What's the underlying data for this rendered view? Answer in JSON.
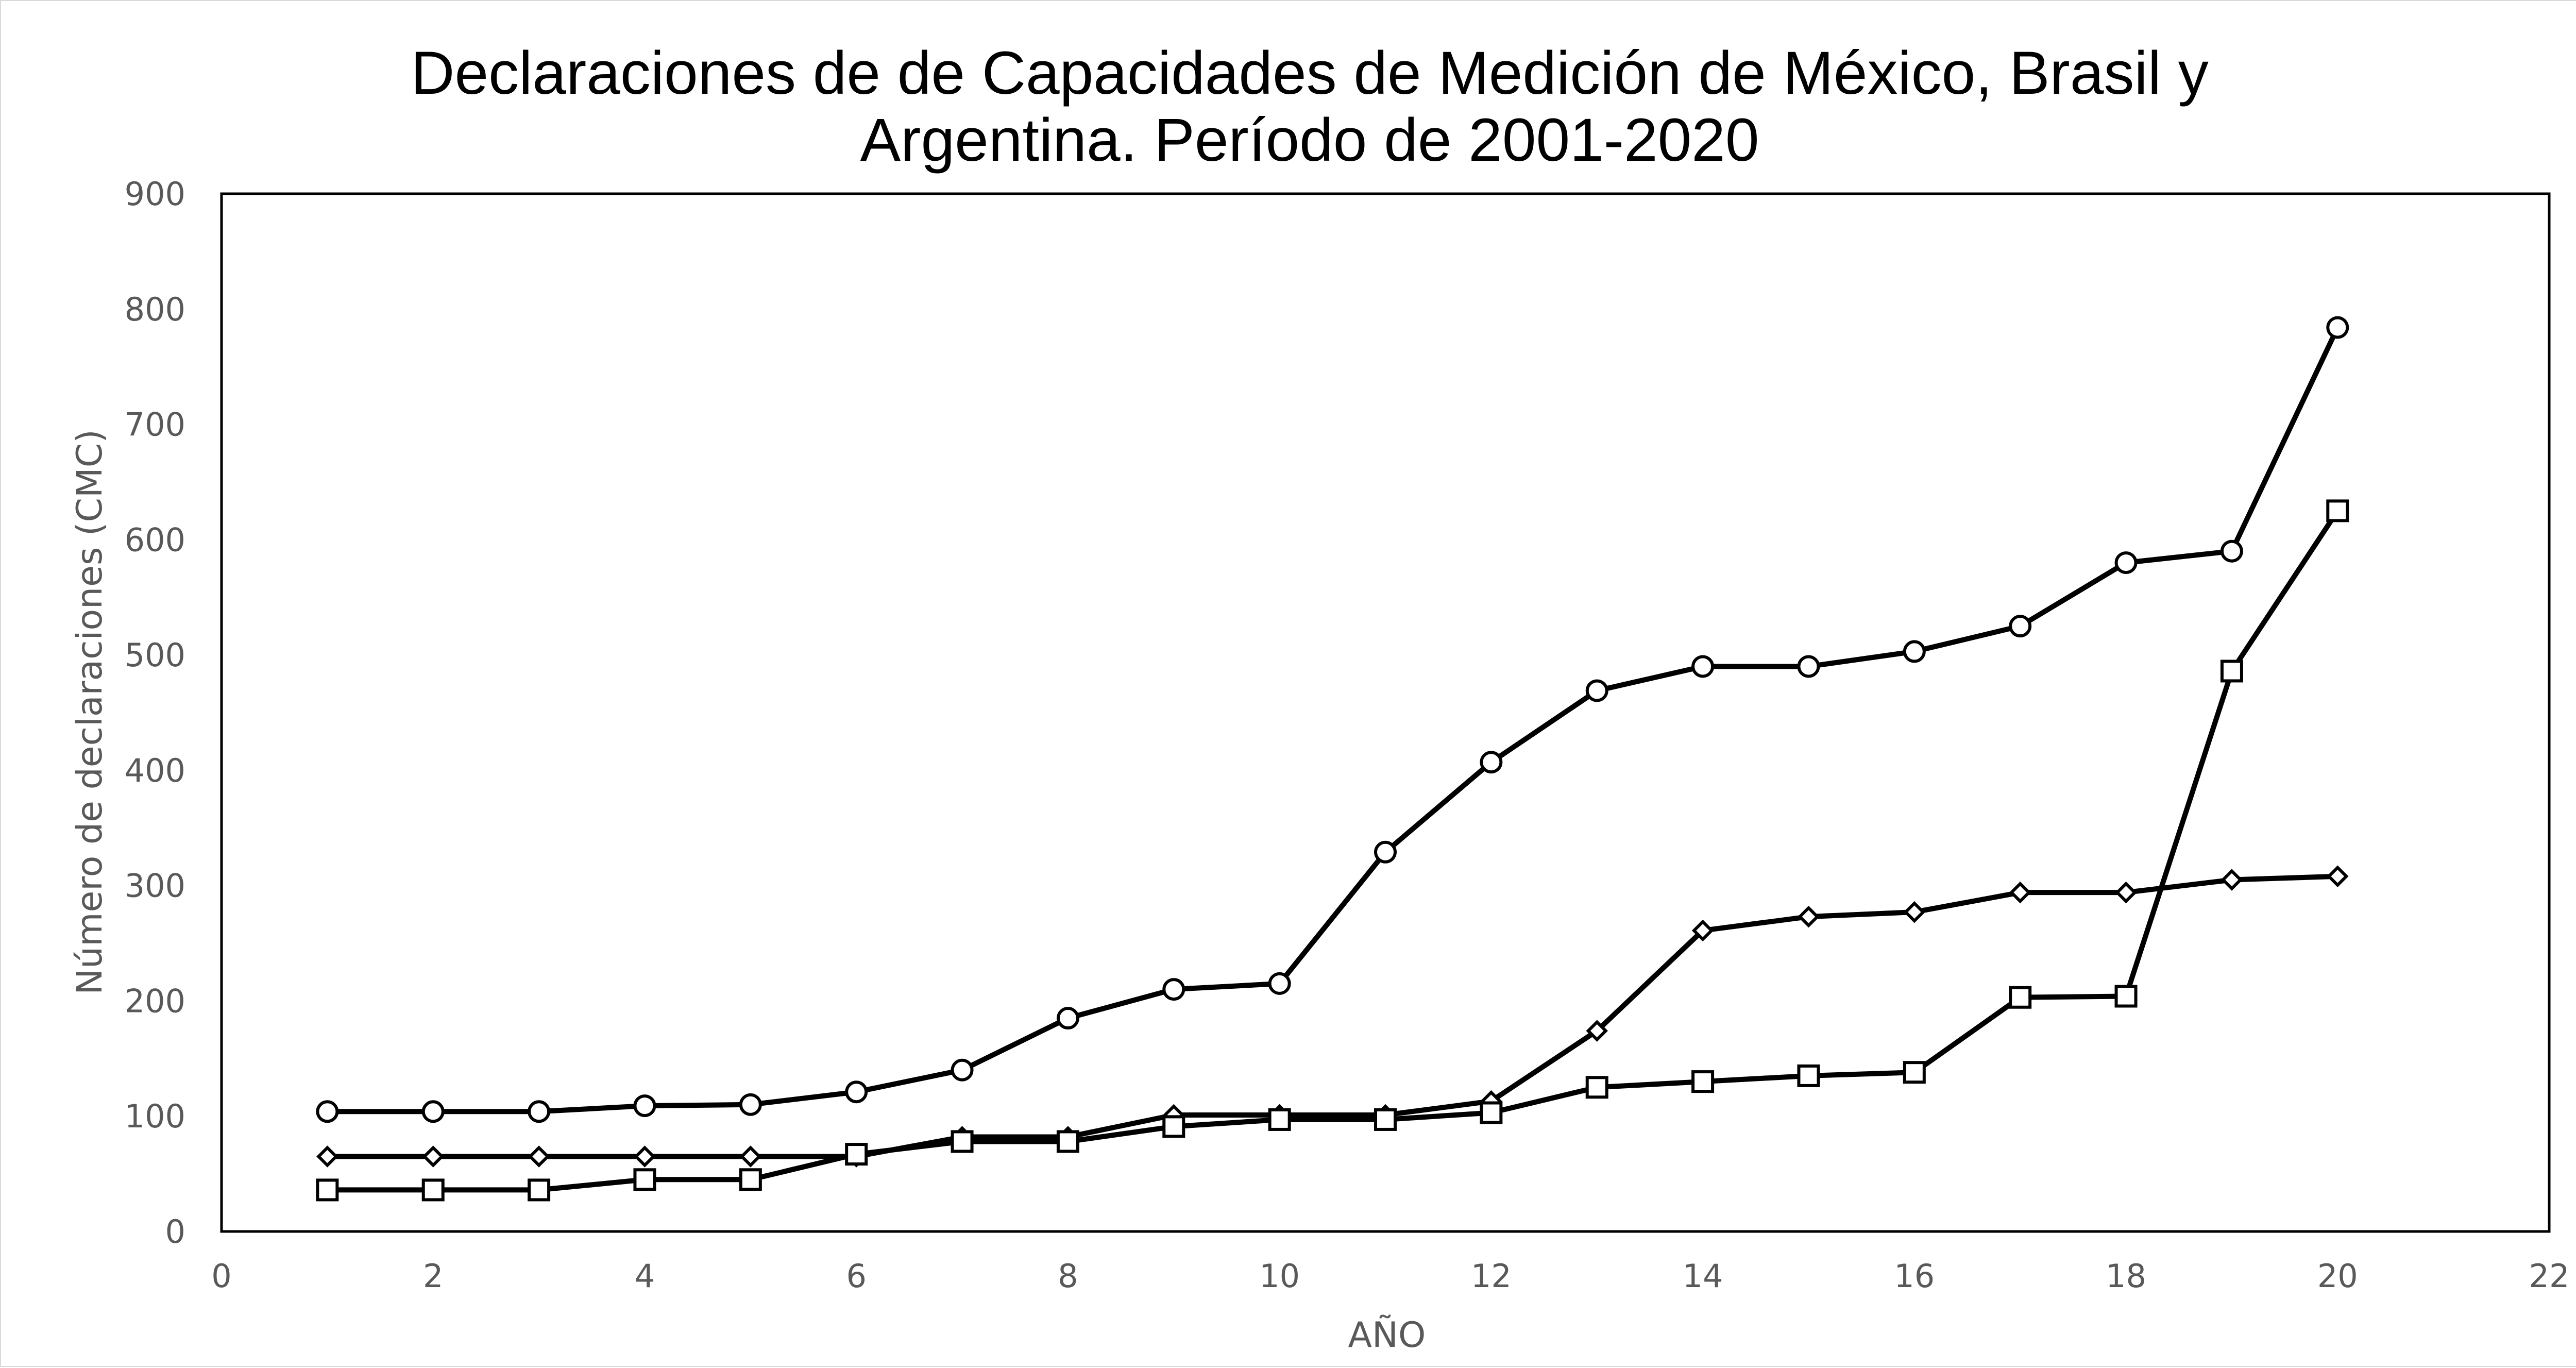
{
  "chart_data": {
    "type": "scatter",
    "title_lines": [
      "Declaraciones de de Capacidades de Medición de México, Brasil y",
      "Argentina. Período de 2001-2020"
    ],
    "xlabel": "AÑO",
    "ylabel": "Número de declaraciones (CMC)",
    "xlim": [
      0,
      22
    ],
    "ylim": [
      0,
      900
    ],
    "x_ticks": [
      0,
      2,
      4,
      6,
      8,
      10,
      12,
      14,
      16,
      18,
      20,
      22
    ],
    "y_ticks": [
      0,
      100,
      200,
      300,
      400,
      500,
      600,
      700,
      800,
      900
    ],
    "grid": false,
    "legend": "none",
    "series": [
      {
        "marker": "circle",
        "x": [
          1,
          2,
          3,
          4,
          5,
          6,
          7,
          8,
          9,
          10,
          11,
          12,
          13,
          14,
          15,
          16,
          17,
          18,
          19,
          20
        ],
        "y": [
          104,
          104,
          104,
          109,
          110,
          121,
          140,
          185,
          210,
          215,
          329,
          407,
          469,
          490,
          490,
          503,
          525,
          580,
          590,
          784
        ]
      },
      {
        "marker": "diamond",
        "x": [
          1,
          2,
          3,
          4,
          5,
          6,
          7,
          8,
          9,
          10,
          11,
          12,
          13,
          14,
          15,
          16,
          17,
          18,
          19,
          20
        ],
        "y": [
          65,
          65,
          65,
          65,
          65,
          65,
          82,
          82,
          101,
          101,
          101,
          113,
          174,
          261,
          273,
          277,
          294,
          294,
          305,
          308
        ]
      },
      {
        "marker": "square",
        "x": [
          1,
          2,
          3,
          4,
          5,
          6,
          7,
          8,
          9,
          10,
          11,
          12,
          13,
          14,
          15,
          16,
          17,
          18,
          19,
          20
        ],
        "y": [
          36,
          36,
          36,
          45,
          45,
          67,
          78,
          78,
          91,
          97,
          97,
          103,
          125,
          130,
          135,
          138,
          203,
          204,
          486,
          625
        ]
      }
    ],
    "colors": {
      "line": "#000000",
      "axis_text": "#595959",
      "plot_border": "#000000"
    }
  }
}
